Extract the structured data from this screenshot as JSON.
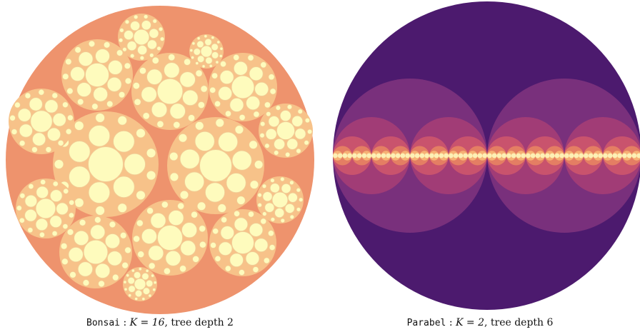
{
  "figures": [
    {
      "id": "bonsai",
      "caption_name": "Bonsai",
      "caption_math": "K = 16",
      "caption_rest": ", tree depth 2",
      "colors": {
        "root": "#ee936d",
        "level1": "#f7c289",
        "leaf": "#fefbbd",
        "leaf_stroke": "#f0cf98"
      }
    },
    {
      "id": "parabel",
      "caption_name": "Parabel",
      "caption_math": "K = 2",
      "caption_rest": ", tree depth 6",
      "colors": {
        "root": "#4c1a6e",
        "d1": "#79307c",
        "d2": "#a13c76",
        "d3": "#c9536d",
        "d4": "#e47e63",
        "d5": "#f6b175",
        "leaf": "#fdf0b5"
      }
    }
  ]
}
